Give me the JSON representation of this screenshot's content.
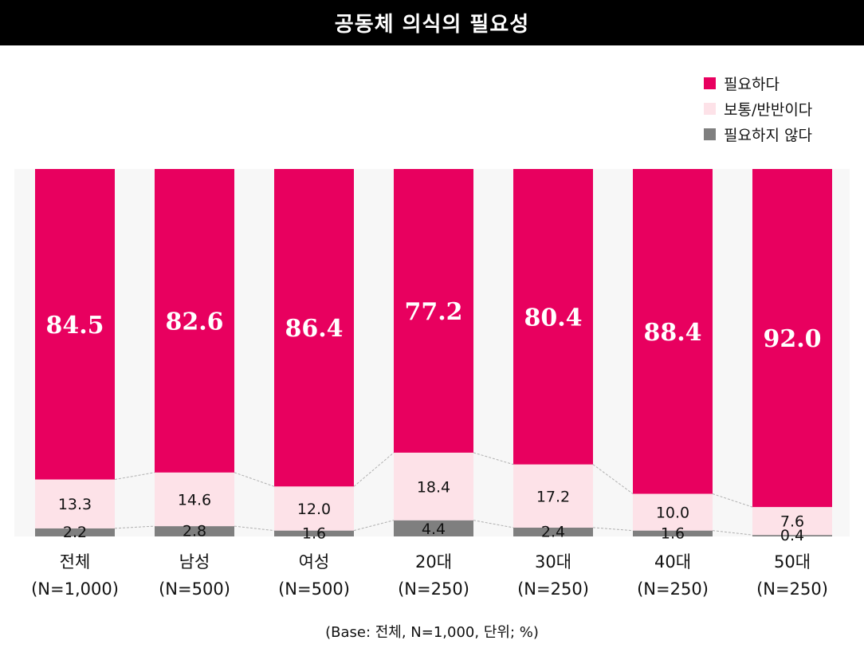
{
  "title": "공동체 의식의 필요성",
  "note": "(Base: 전체, N=1,000, 단위; %)",
  "colors": {
    "need": "#e8005f",
    "neutral": "#fde2e8",
    "not_need": "#7f7f7f",
    "plot_bg": "#f7f7f7"
  },
  "chart_data": {
    "type": "bar",
    "stacked": true,
    "categories": [
      {
        "line1": "전체",
        "line2": "(N=1,000)"
      },
      {
        "line1": "남성",
        "line2": "(N=500)"
      },
      {
        "line1": "여성",
        "line2": "(N=500)"
      },
      {
        "line1": "20대",
        "line2": "(N=250)"
      },
      {
        "line1": "30대",
        "line2": "(N=250)"
      },
      {
        "line1": "40대",
        "line2": "(N=250)"
      },
      {
        "line1": "50대",
        "line2": "(N=250)"
      }
    ],
    "series": [
      {
        "name": "필요하지 않다",
        "values": [
          2.2,
          2.8,
          1.6,
          4.4,
          2.4,
          1.6,
          0.4
        ],
        "labels": [
          "2.2",
          "2.8",
          "1.6",
          "4.4",
          "2.4",
          "1.6",
          "0.4"
        ]
      },
      {
        "name": "보통/반반이다",
        "values": [
          13.3,
          14.6,
          12.0,
          18.4,
          17.2,
          10.0,
          7.6
        ],
        "labels": [
          "13.3",
          "14.6",
          "12.0",
          "18.4",
          "17.2",
          "10.0",
          "7.6"
        ]
      },
      {
        "name": "필요하다",
        "values": [
          84.5,
          82.6,
          86.4,
          77.2,
          80.4,
          88.4,
          92.0
        ],
        "labels": [
          "84.5",
          "82.6",
          "86.4",
          "77.2",
          "80.4",
          "88.4",
          "92.0"
        ]
      }
    ],
    "legend": [
      {
        "name": "필요하다",
        "color_key": "need"
      },
      {
        "name": "보통/반반이다",
        "color_key": "neutral"
      },
      {
        "name": "필요하지 않다",
        "color_key": "not_need"
      }
    ],
    "legend_position": "top-right",
    "ylim": [
      0,
      100
    ]
  }
}
